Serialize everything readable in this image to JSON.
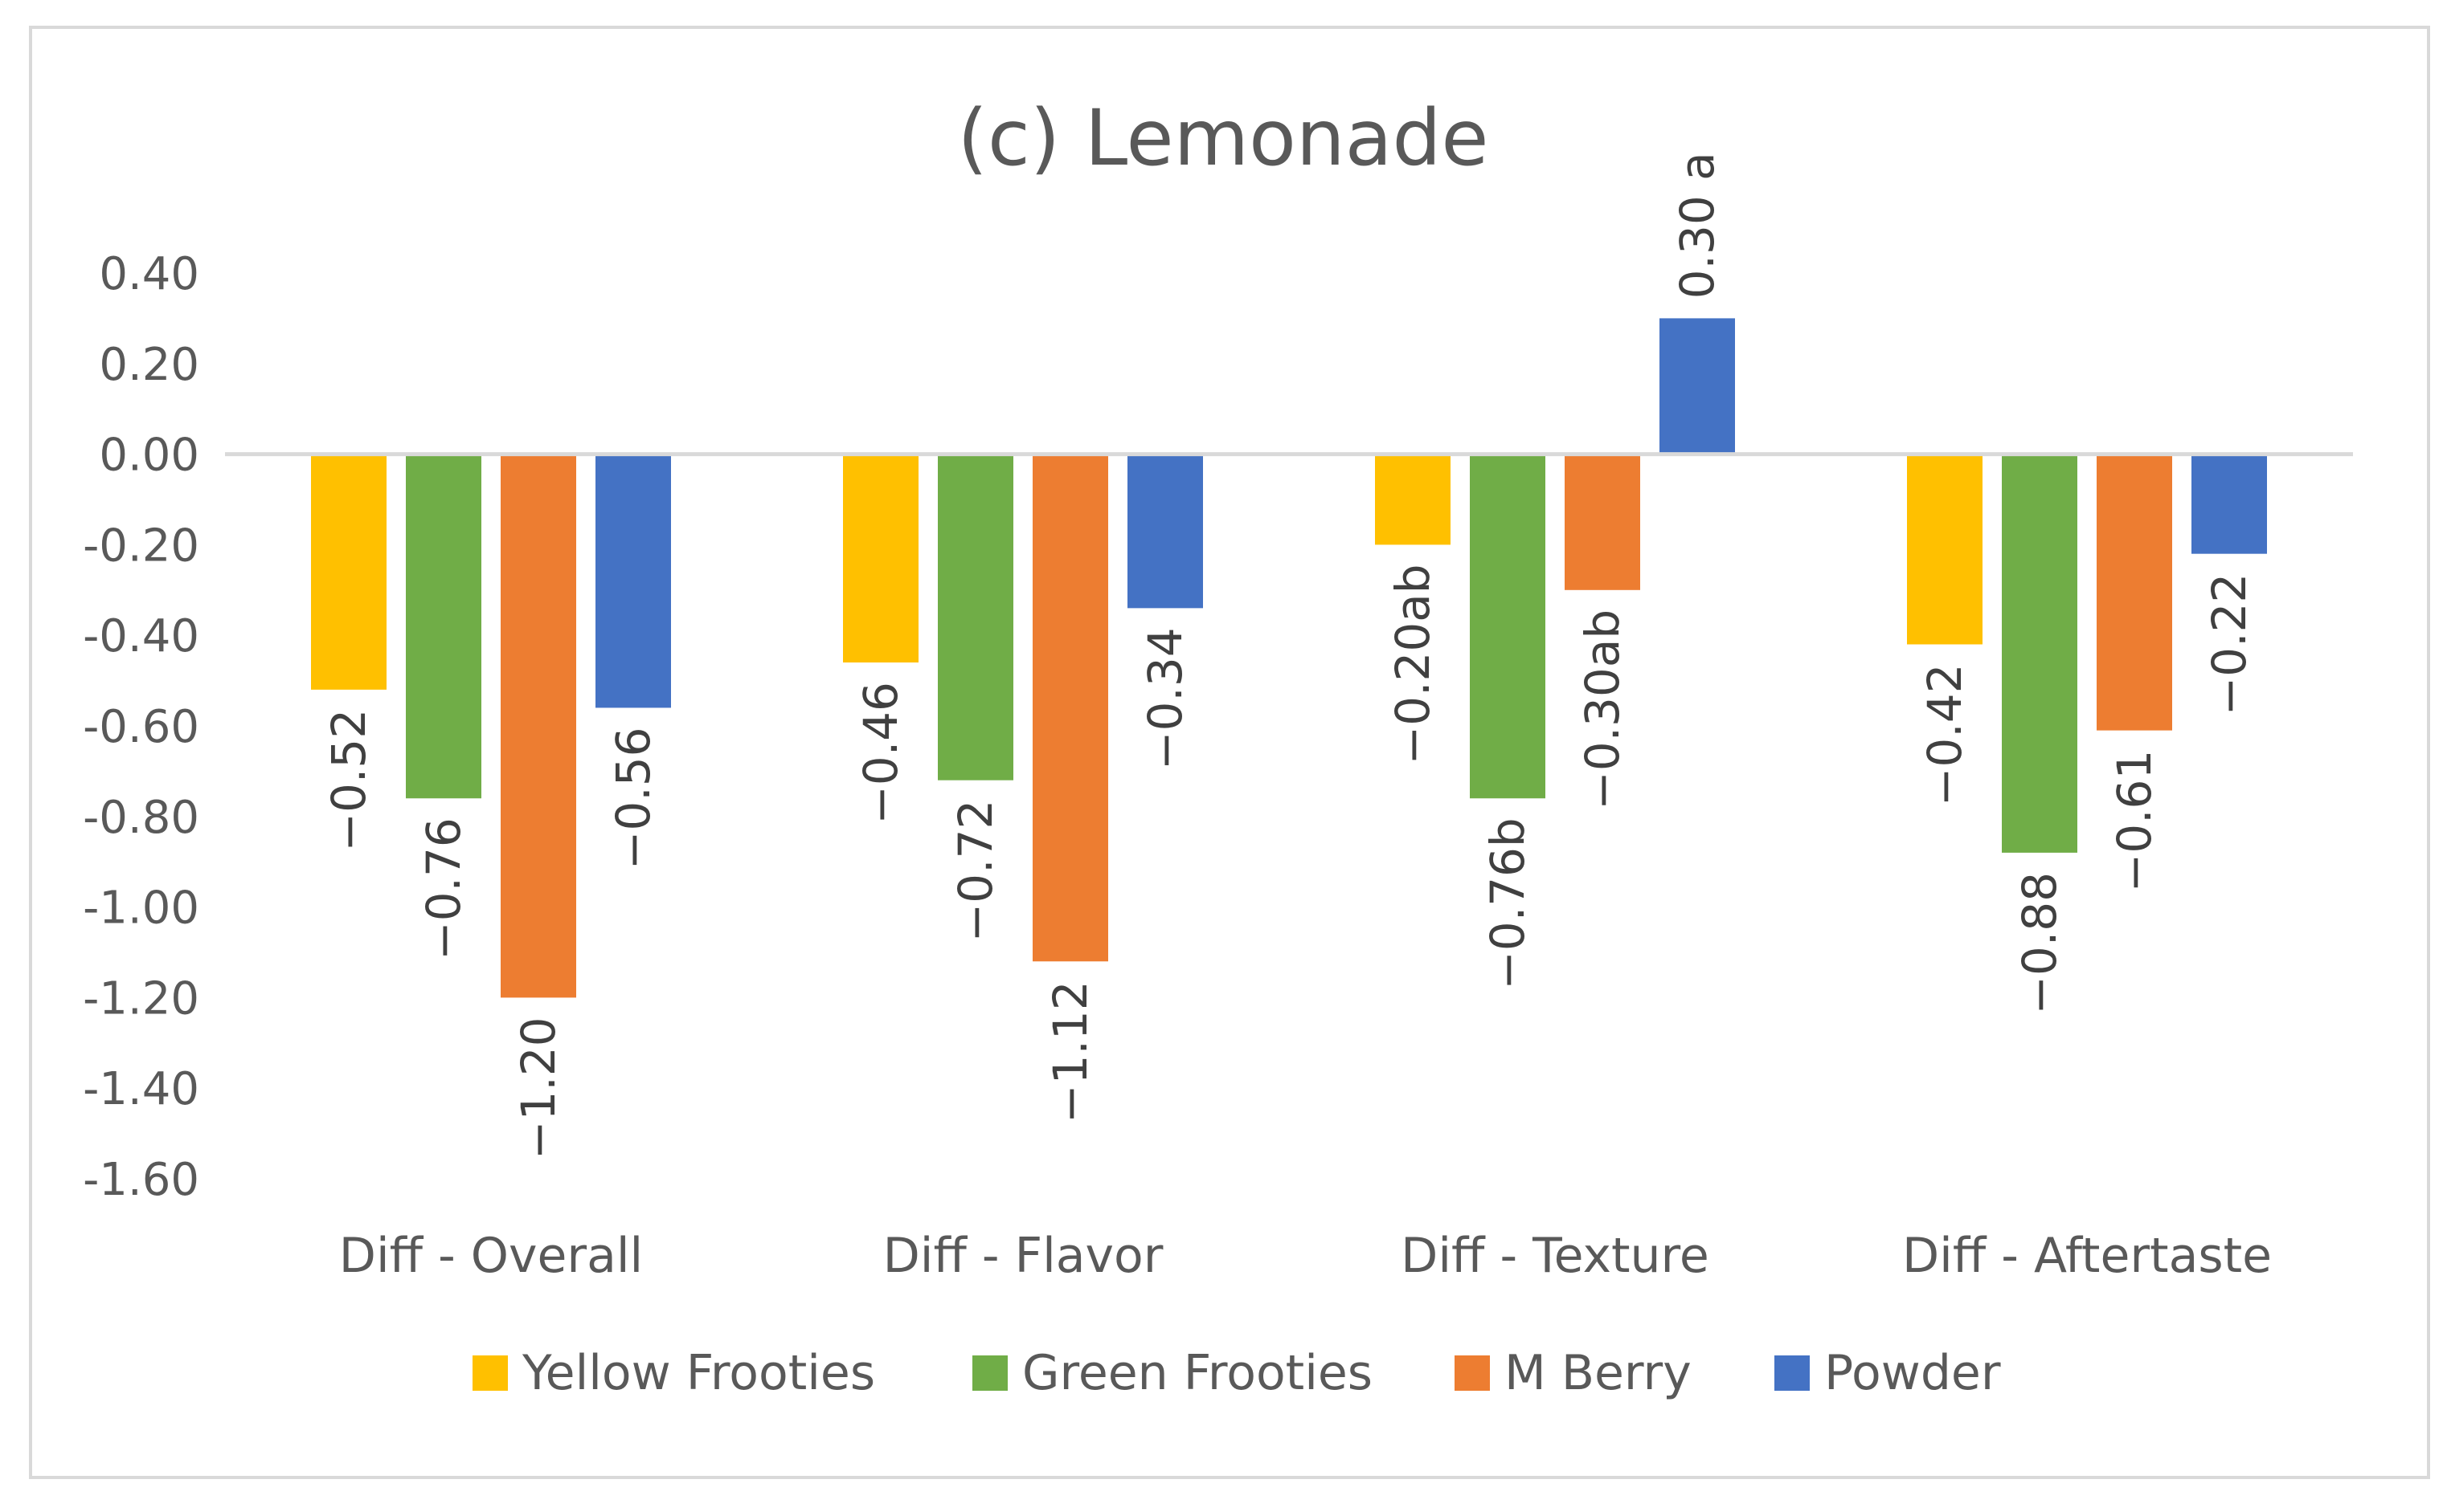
{
  "chart_data": {
    "type": "bar",
    "title": "(c) Lemonade",
    "xlabel": "",
    "ylabel": "",
    "ylim": [
      -1.6,
      0.4
    ],
    "yticks": [
      0.4,
      0.2,
      0.0,
      -0.2,
      -0.4,
      -0.6,
      -0.8,
      -1.0,
      -1.2,
      -1.4,
      -1.6
    ],
    "ytick_labels": [
      "0.40",
      "0.20",
      "0.00",
      "-0.20",
      "-0.40",
      "-0.60",
      "-0.80",
      "-1.00",
      "-1.20",
      "-1.40",
      "-1.60"
    ],
    "grid": false,
    "legend_position": "bottom",
    "categories": [
      "Diff - Overall",
      "Diff - Flavor",
      "Diff - Texture",
      "Diff - Aftertaste"
    ],
    "series": [
      {
        "name": "Yellow Frooties",
        "color": "#FFC000",
        "values": [
          -0.52,
          -0.46,
          -0.2,
          -0.42
        ],
        "labels": [
          "−0.52",
          "−0.46",
          "−0.20ab",
          "−0.42"
        ]
      },
      {
        "name": "Green Frooties",
        "color": "#70AD47",
        "values": [
          -0.76,
          -0.72,
          -0.76,
          -0.88
        ],
        "labels": [
          "−0.76",
          "−0.72",
          "−0.76b",
          "−0.88"
        ]
      },
      {
        "name": "M Berry",
        "color": "#ED7D31",
        "values": [
          -1.2,
          -1.12,
          -0.3,
          -0.61
        ],
        "labels": [
          "−1.20",
          "−1.12",
          "−0.30ab",
          "−0.61"
        ]
      },
      {
        "name": "Powder",
        "color": "#4472C4",
        "values": [
          -0.56,
          -0.34,
          0.3,
          -0.22
        ],
        "labels": [
          "−0.56",
          "−0.34",
          "0.30 a",
          "−0.22"
        ]
      }
    ],
    "colors": {
      "axis_line": "#D9D9D9",
      "border": "#D9D9D9",
      "text": "#595959"
    }
  }
}
